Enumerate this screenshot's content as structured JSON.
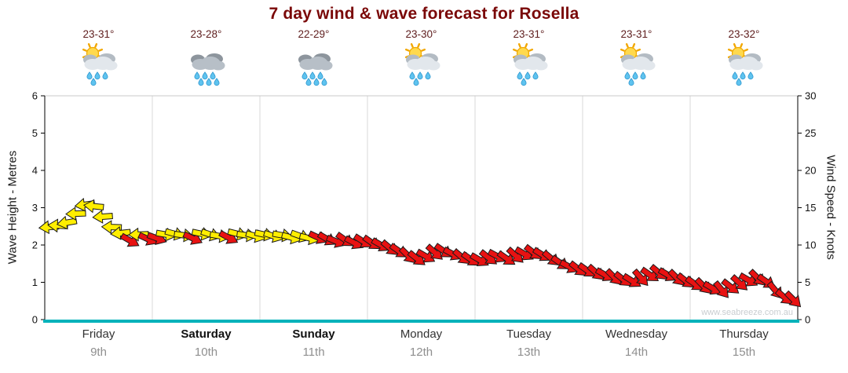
{
  "title": "7 day wind & wave forecast for Rosella",
  "watermark": "www.seabreeze.com.au",
  "colors": {
    "title": "#7a0707",
    "temp": "#602020",
    "day_label": "#333333",
    "date_label": "#8f8f8f",
    "grid": "#d9d9d9",
    "axis": "#000000",
    "bottom_axis": "#00b2ba"
  },
  "axes": {
    "left_label": "Wave Height - Metres",
    "right_label": "Wind Speed - Knots",
    "left_ticks": [
      "0",
      "1",
      "2",
      "3",
      "4",
      "5",
      "6"
    ],
    "right_ticks": [
      "0",
      "5",
      "10",
      "15",
      "20",
      "25",
      "30"
    ]
  },
  "days": [
    {
      "name": "Friday",
      "date": "9th",
      "temp": "23-31°",
      "icon": "sun-cloud-rain",
      "bold": false
    },
    {
      "name": "Saturday",
      "date": "10th",
      "temp": "23-28°",
      "icon": "cloud-rain",
      "bold": true
    },
    {
      "name": "Sunday",
      "date": "11th",
      "temp": "22-29°",
      "icon": "cloud-rain",
      "bold": true
    },
    {
      "name": "Monday",
      "date": "12th",
      "temp": "23-30°",
      "icon": "sun-cloud-rain",
      "bold": false
    },
    {
      "name": "Tuesday",
      "date": "13th",
      "temp": "23-31°",
      "icon": "sun-cloud-rain",
      "bold": false
    },
    {
      "name": "Wednesday",
      "date": "14th",
      "temp": "23-31°",
      "icon": "sun-cloud-rain",
      "bold": false
    },
    {
      "name": "Thursday",
      "date": "15th",
      "temp": "23-32°",
      "icon": "sun-cloud-rain",
      "bold": false
    }
  ],
  "chart_data": {
    "type": "wind-arrow-timeseries",
    "categories": [
      "Friday",
      "Saturday",
      "Sunday",
      "Monday",
      "Tuesday",
      "Wednesday",
      "Thursday"
    ],
    "wave_axis": {
      "label": "Wave Height - Metres",
      "min": 0,
      "max": 6,
      "unit": "m"
    },
    "wind_axis": {
      "label": "Wind Speed - Knots",
      "min": 0,
      "max": 30,
      "unit": "kt"
    },
    "arrow_colors": {
      "y": "#ffee00",
      "r": "#e81212"
    },
    "arrow_format": "[wind_knots, direction_deg, color_key] - 12 samples per day, Friday 9th through Thursday 15th",
    "arrows": [
      [
        12.4,
        175,
        "y"
      ],
      [
        12.6,
        183,
        "y"
      ],
      [
        13.0,
        170,
        "y"
      ],
      [
        14.2,
        178,
        "y"
      ],
      [
        15.4,
        172,
        "y"
      ],
      [
        15.2,
        186,
        "y"
      ],
      [
        13.8,
        176,
        "y"
      ],
      [
        12.4,
        182,
        "y"
      ],
      [
        11.6,
        174,
        "y"
      ],
      [
        10.6,
        30,
        "r"
      ],
      [
        11.4,
        178,
        "y"
      ],
      [
        10.8,
        25,
        "r"
      ],
      [
        10.9,
        20,
        "r"
      ],
      [
        11.4,
        10,
        "y"
      ],
      [
        11.5,
        15,
        "y"
      ],
      [
        11.3,
        8,
        "y"
      ],
      [
        10.9,
        25,
        "r"
      ],
      [
        11.5,
        12,
        "y"
      ],
      [
        11.4,
        18,
        "y"
      ],
      [
        11.2,
        10,
        "y"
      ],
      [
        11.0,
        28,
        "r"
      ],
      [
        11.5,
        14,
        "y"
      ],
      [
        11.3,
        8,
        "y"
      ],
      [
        11.2,
        16,
        "y"
      ],
      [
        11.4,
        12,
        "y"
      ],
      [
        11.2,
        18,
        "y"
      ],
      [
        11.3,
        10,
        "y"
      ],
      [
        11.0,
        15,
        "y"
      ],
      [
        11.2,
        20,
        "y"
      ],
      [
        10.9,
        14,
        "y"
      ],
      [
        11.0,
        25,
        "r"
      ],
      [
        10.8,
        30,
        "r"
      ],
      [
        10.5,
        22,
        "r"
      ],
      [
        10.7,
        35,
        "r"
      ],
      [
        10.3,
        28,
        "r"
      ],
      [
        10.5,
        32,
        "r"
      ],
      [
        10.3,
        35,
        "r"
      ],
      [
        10.0,
        30,
        "r"
      ],
      [
        9.6,
        40,
        "r"
      ],
      [
        9.2,
        35,
        "r"
      ],
      [
        8.6,
        45,
        "r"
      ],
      [
        8.2,
        38,
        "r"
      ],
      [
        8.5,
        30,
        "r"
      ],
      [
        9.0,
        42,
        "r"
      ],
      [
        9.2,
        35,
        "r"
      ],
      [
        8.8,
        28,
        "r"
      ],
      [
        8.4,
        40,
        "r"
      ],
      [
        8.1,
        35,
        "r"
      ],
      [
        8.0,
        30,
        "r"
      ],
      [
        8.3,
        38,
        "r"
      ],
      [
        8.5,
        28,
        "r"
      ],
      [
        8.2,
        35,
        "r"
      ],
      [
        8.6,
        42,
        "r"
      ],
      [
        8.8,
        30,
        "r"
      ],
      [
        9.0,
        38,
        "r"
      ],
      [
        8.7,
        32,
        "r"
      ],
      [
        8.2,
        40,
        "r"
      ],
      [
        7.6,
        35,
        "r"
      ],
      [
        7.1,
        28,
        "r"
      ],
      [
        6.8,
        38,
        "r"
      ],
      [
        6.6,
        35,
        "r"
      ],
      [
        6.3,
        42,
        "r"
      ],
      [
        6.0,
        30,
        "r"
      ],
      [
        5.7,
        45,
        "r"
      ],
      [
        5.4,
        38,
        "r"
      ],
      [
        5.2,
        32,
        "r"
      ],
      [
        5.6,
        48,
        "r"
      ],
      [
        6.0,
        35,
        "r"
      ],
      [
        6.3,
        40,
        "r"
      ],
      [
        6.0,
        30,
        "r"
      ],
      [
        5.6,
        45,
        "r"
      ],
      [
        5.2,
        38,
        "r"
      ],
      [
        4.8,
        35,
        "r"
      ],
      [
        4.5,
        45,
        "r"
      ],
      [
        4.2,
        30,
        "r"
      ],
      [
        4.0,
        50,
        "r"
      ],
      [
        4.4,
        38,
        "r"
      ],
      [
        4.9,
        42,
        "r"
      ],
      [
        5.3,
        30,
        "r"
      ],
      [
        5.6,
        45,
        "r"
      ],
      [
        5.1,
        35,
        "r"
      ],
      [
        3.9,
        50,
        "r"
      ],
      [
        3.0,
        40,
        "r"
      ],
      [
        2.7,
        45,
        "r"
      ]
    ]
  }
}
